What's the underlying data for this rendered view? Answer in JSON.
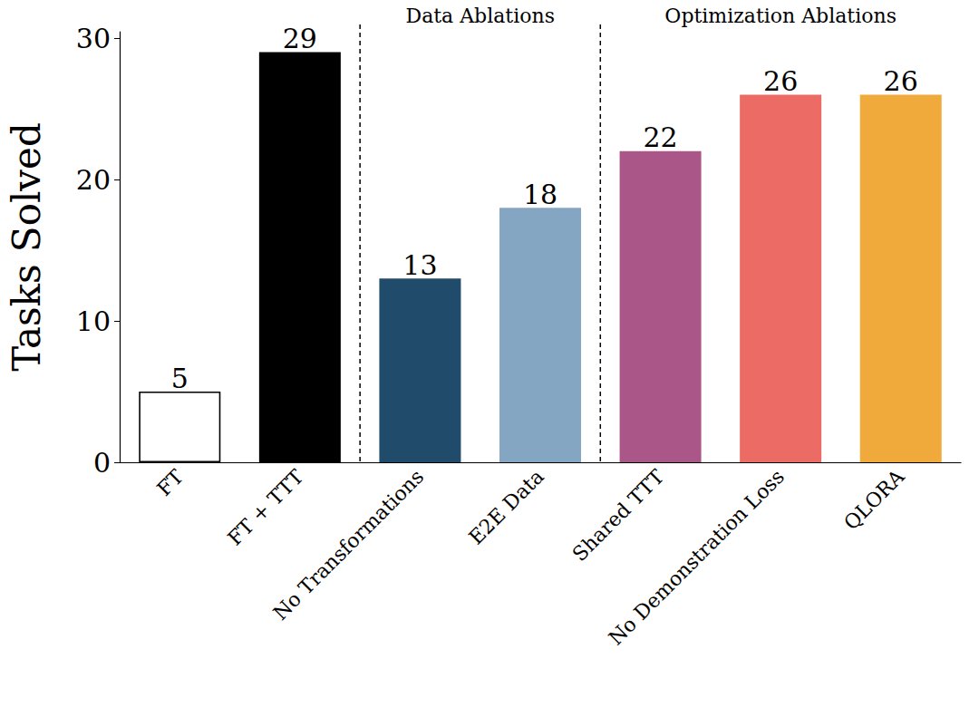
{
  "chart_data": {
    "type": "bar",
    "categories": [
      "FT",
      "FT + TTT",
      "No Transformations",
      "E2E Data",
      "Shared TTT",
      "No Demonstration Loss",
      "QLORA"
    ],
    "values": [
      5,
      29,
      13,
      18,
      22,
      26,
      26
    ],
    "colors": [
      "#ffffff",
      "#000000",
      "#214b6b",
      "#84a6c3",
      "#ab5688",
      "#ec6b65",
      "#f0a93b"
    ],
    "ylabel": "Tasks Solved",
    "ylim": [
      0,
      30.45
    ],
    "yticks": [
      0,
      10,
      20,
      30
    ],
    "grid": false,
    "data_labels": true,
    "annotations": [
      {
        "text": "Data Ablations",
        "start": "No Transformations",
        "end": "E2E Data"
      },
      {
        "text": "Optimization Ablations",
        "start": "Shared TTT",
        "end": "QLORA"
      }
    ]
  }
}
